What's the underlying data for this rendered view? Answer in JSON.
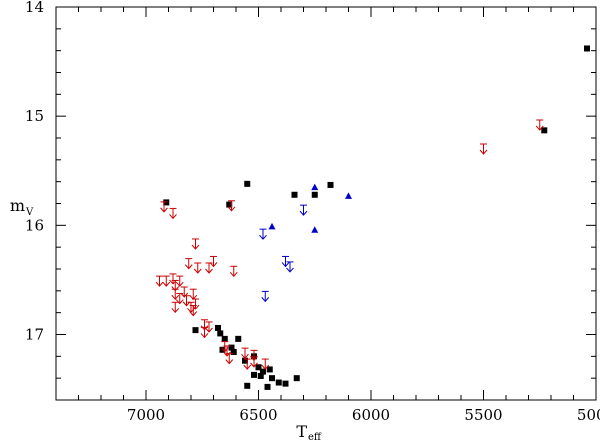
{
  "chart_data": {
    "type": "scatter",
    "title": "",
    "xlabel": "T",
    "xlabel_sub": "eff",
    "ylabel": "m",
    "ylabel_sub": "V",
    "x_reversed": true,
    "y_reversed": true,
    "xlim": [
      7400,
      5000
    ],
    "ylim": [
      14.0,
      17.6
    ],
    "x_ticks": [
      7000,
      6500,
      6000,
      5500,
      5000
    ],
    "y_ticks": [
      14,
      15,
      16,
      17
    ],
    "x_tick_labels": [
      "7000",
      "6500",
      "6000",
      "5500",
      "5000"
    ],
    "y_tick_labels": [
      "14",
      "15",
      "16",
      "17"
    ],
    "grid": false,
    "series": [
      {
        "marker": "square",
        "color": "#000000",
        "points": [
          [
            5040,
            14.38
          ],
          [
            5230,
            15.13
          ],
          [
            6910,
            15.79
          ],
          [
            6550,
            15.62
          ],
          [
            6630,
            15.81
          ],
          [
            6340,
            15.72
          ],
          [
            6250,
            15.72
          ],
          [
            6180,
            15.63
          ],
          [
            6780,
            16.96
          ],
          [
            6680,
            16.94
          ],
          [
            6670,
            16.99
          ],
          [
            6650,
            17.04
          ],
          [
            6590,
            17.04
          ],
          [
            6620,
            17.12
          ],
          [
            6660,
            17.14
          ],
          [
            6610,
            17.16
          ],
          [
            6520,
            17.2
          ],
          [
            6560,
            17.24
          ],
          [
            6500,
            17.3
          ],
          [
            6480,
            17.34
          ],
          [
            6450,
            17.32
          ],
          [
            6490,
            17.38
          ],
          [
            6520,
            17.37
          ],
          [
            6440,
            17.4
          ],
          [
            6410,
            17.44
          ],
          [
            6330,
            17.4
          ],
          [
            6380,
            17.45
          ],
          [
            6460,
            17.48
          ],
          [
            6550,
            17.47
          ]
        ]
      },
      {
        "marker": "triangle",
        "color": "#0000cc",
        "points": [
          [
            6250,
            15.65
          ],
          [
            6100,
            15.73
          ],
          [
            6440,
            16.01
          ],
          [
            6250,
            16.04
          ]
        ]
      },
      {
        "marker": "upper-limit",
        "color": "#0000cc",
        "points": [
          [
            6300,
            15.87
          ],
          [
            6480,
            16.09
          ],
          [
            6380,
            16.34
          ],
          [
            6360,
            16.39
          ],
          [
            6470,
            16.66
          ]
        ]
      },
      {
        "marker": "upper-limit",
        "color": "#cc0000",
        "points": [
          [
            5250,
            15.09
          ],
          [
            5500,
            15.31
          ],
          [
            6920,
            15.84
          ],
          [
            6880,
            15.9
          ],
          [
            6620,
            15.83
          ],
          [
            6780,
            16.18
          ],
          [
            6700,
            16.34
          ],
          [
            6810,
            16.36
          ],
          [
            6720,
            16.4
          ],
          [
            6770,
            16.4
          ],
          [
            6610,
            16.43
          ],
          [
            6940,
            16.52
          ],
          [
            6910,
            16.52
          ],
          [
            6880,
            16.5
          ],
          [
            6850,
            16.52
          ],
          [
            6870,
            16.56
          ],
          [
            6830,
            16.62
          ],
          [
            6790,
            16.64
          ],
          [
            6870,
            16.64
          ],
          [
            6850,
            16.68
          ],
          [
            6820,
            16.7
          ],
          [
            6780,
            16.73
          ],
          [
            6800,
            16.76
          ],
          [
            6870,
            16.76
          ],
          [
            6790,
            16.79
          ],
          [
            6740,
            16.92
          ],
          [
            6720,
            16.94
          ],
          [
            6740,
            16.99
          ],
          [
            6650,
            17.12
          ],
          [
            6640,
            17.16
          ],
          [
            6560,
            17.18
          ],
          [
            6520,
            17.2
          ],
          [
            6630,
            17.23
          ],
          [
            6520,
            17.26
          ],
          [
            6550,
            17.28
          ],
          [
            6470,
            17.28
          ]
        ]
      }
    ]
  }
}
